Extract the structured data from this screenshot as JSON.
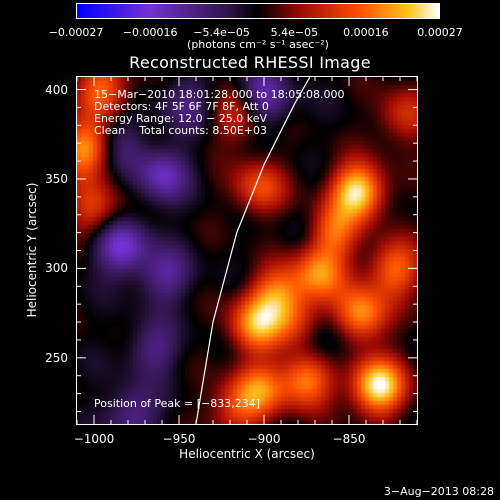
{
  "chart_data": {
    "type": "heatmap",
    "title": "Reconstructed RHESSI Image",
    "xlabel": "Heliocentric X (arcsec)",
    "ylabel": "Heliocentric Y (arcsec)",
    "xlim": [
      -1010,
      -810
    ],
    "ylim": [
      213,
      407
    ],
    "x_ticks": [
      -1000,
      -950,
      -900,
      -850
    ],
    "x_tick_labels": [
      "−1000",
      "−950",
      "−900",
      "−850"
    ],
    "y_ticks": [
      250,
      300,
      350,
      400
    ],
    "y_tick_labels": [
      "250",
      "300",
      "350",
      "400"
    ],
    "colorbar": {
      "range": [
        -0.00027,
        0.00027
      ],
      "ticks": [
        -0.00027,
        -0.00016,
        -5.4e-05,
        5.4e-05,
        0.00016,
        0.00027
      ],
      "tick_labels": [
        "−0.00027",
        "−0.00016",
        "−5.4e−05",
        "5.4e−05",
        "0.00016",
        "0.00027"
      ],
      "units": "(photons cm⁻² s⁻¹ asec⁻²)"
    },
    "annotations": [
      "15−Mar−2010 18:01:28.000 to 18:05:08.000",
      "Detectors: 4F 5F 6F 7F 8F, Att 0",
      "Energy Range: 12.0 − 25.0 keV",
      "Clean    Total counts: 8.50E+03"
    ],
    "peak_label": "Position of Peak = [−833,234]",
    "peak_position": [
      -833,
      234
    ],
    "limb_curve": [
      [
        -940,
        213
      ],
      [
        -930,
        270
      ],
      [
        -916,
        320
      ],
      [
        -900,
        358
      ],
      [
        -882,
        392
      ],
      [
        -873,
        407
      ]
    ],
    "sources": [
      {
        "x": -833,
        "y": 234,
        "v": 1.0
      },
      {
        "x": -845,
        "y": 343,
        "v": 0.95
      },
      {
        "x": -862,
        "y": 320,
        "v": 0.75
      },
      {
        "x": -868,
        "y": 297,
        "v": 0.65
      },
      {
        "x": -905,
        "y": 268,
        "v": 0.7
      },
      {
        "x": -893,
        "y": 285,
        "v": 0.6
      },
      {
        "x": -843,
        "y": 274,
        "v": 0.75
      },
      {
        "x": -823,
        "y": 300,
        "v": 0.6
      },
      {
        "x": -875,
        "y": 238,
        "v": 0.7
      },
      {
        "x": -903,
        "y": 232,
        "v": 0.6
      },
      {
        "x": -1005,
        "y": 367,
        "v": 0.75
      },
      {
        "x": -995,
        "y": 400,
        "v": 0.6
      },
      {
        "x": -1000,
        "y": 333,
        "v": 0.45
      },
      {
        "x": -903,
        "y": 345,
        "v": 0.5
      },
      {
        "x": -915,
        "y": 385,
        "v": 0.4
      },
      {
        "x": -880,
        "y": 270,
        "v": 0.4
      },
      {
        "x": -818,
        "y": 385,
        "v": 0.4
      },
      {
        "x": -918,
        "y": 220,
        "v": 0.4
      },
      {
        "x": -978,
        "y": 218,
        "v": -0.4
      },
      {
        "x": -958,
        "y": 296,
        "v": -0.4
      },
      {
        "x": -965,
        "y": 255,
        "v": -0.35
      },
      {
        "x": -984,
        "y": 312,
        "v": -0.6
      },
      {
        "x": -960,
        "y": 352,
        "v": -0.5
      },
      {
        "x": -900,
        "y": 395,
        "v": -0.5
      },
      {
        "x": -945,
        "y": 392,
        "v": -0.3
      },
      {
        "x": -985,
        "y": 370,
        "v": -0.3
      },
      {
        "x": -870,
        "y": 320,
        "v": -0.3
      },
      {
        "x": -865,
        "y": 259,
        "v": -0.3
      }
    ]
  },
  "footer": {
    "date": "3−Aug−2013 08:28"
  }
}
